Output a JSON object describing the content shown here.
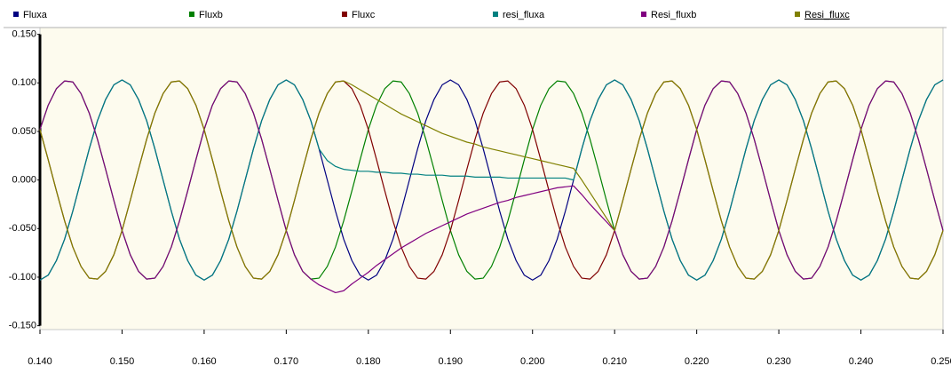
{
  "chart_data": {
    "type": "line",
    "x": [
      0.14,
      0.141,
      0.142,
      0.143,
      0.144,
      0.145,
      0.146,
      0.147,
      0.148,
      0.149,
      0.15,
      0.151,
      0.152,
      0.153,
      0.154,
      0.155,
      0.156,
      0.157,
      0.158,
      0.159,
      0.16,
      0.161,
      0.162,
      0.163,
      0.164,
      0.165,
      0.166,
      0.167,
      0.168,
      0.169,
      0.17,
      0.171,
      0.172,
      0.173,
      0.174,
      0.175,
      0.176,
      0.177,
      0.178,
      0.179,
      0.18,
      0.181,
      0.182,
      0.183,
      0.184,
      0.185,
      0.186,
      0.187,
      0.188,
      0.189,
      0.19,
      0.191,
      0.192,
      0.193,
      0.194,
      0.195,
      0.196,
      0.197,
      0.198,
      0.199,
      0.2,
      0.201,
      0.202,
      0.203,
      0.204,
      0.205,
      0.206,
      0.207,
      0.208,
      0.209,
      0.21,
      0.211,
      0.212,
      0.213,
      0.214,
      0.215,
      0.216,
      0.217,
      0.218,
      0.219,
      0.22,
      0.221,
      0.222,
      0.223,
      0.224,
      0.225,
      0.226,
      0.227,
      0.228,
      0.229,
      0.23,
      0.231,
      0.232,
      0.233,
      0.234,
      0.235,
      0.236,
      0.237,
      0.238,
      0.239,
      0.24,
      0.241,
      0.242,
      0.243,
      0.244,
      0.245,
      0.246,
      0.247,
      0.248,
      0.249,
      0.25
    ],
    "series": [
      {
        "name": "Fluxa",
        "color": "#000080",
        "values": [
          -0.103,
          -0.098,
          -0.083,
          -0.061,
          -0.032,
          0,
          0.032,
          0.061,
          0.083,
          0.098,
          0.103,
          0.098,
          0.083,
          0.061,
          0.032,
          0,
          -0.032,
          -0.061,
          -0.083,
          -0.098,
          -0.103,
          -0.098,
          -0.083,
          -0.061,
          -0.032,
          0,
          0.032,
          0.061,
          0.083,
          0.098,
          0.103,
          0.098,
          0.083,
          0.061,
          0.032,
          0,
          -0.032,
          -0.061,
          -0.083,
          -0.098,
          -0.103,
          -0.098,
          -0.083,
          -0.061,
          -0.032,
          0,
          0.032,
          0.061,
          0.083,
          0.098,
          0.103,
          0.098,
          0.083,
          0.061,
          0.032,
          0,
          -0.032,
          -0.061,
          -0.083,
          -0.098,
          -0.103,
          -0.098,
          -0.083,
          -0.061,
          -0.032,
          0,
          0.032,
          0.061,
          0.083,
          0.098,
          0.103,
          0.098,
          0.083,
          0.061,
          0.032,
          0,
          -0.032,
          -0.061,
          -0.083,
          -0.098,
          -0.103,
          -0.098,
          -0.083,
          -0.061,
          -0.032,
          0,
          0.032,
          0.061,
          0.083,
          0.098,
          0.103,
          0.098,
          0.083,
          0.061,
          0.032,
          0,
          -0.032,
          -0.061,
          -0.083,
          -0.098,
          -0.103,
          -0.098,
          -0.083,
          -0.061,
          -0.032,
          0,
          0.032,
          0.061,
          0.083,
          0.098,
          0.103
        ]
      },
      {
        "name": "Fluxb",
        "color": "#008000",
        "values": [
          0.052,
          0.077,
          0.094,
          0.102,
          0.101,
          0.089,
          0.069,
          0.042,
          0.011,
          -0.021,
          -0.052,
          -0.077,
          -0.094,
          -0.102,
          -0.101,
          -0.089,
          -0.069,
          -0.042,
          -0.011,
          0.021,
          0.052,
          0.077,
          0.094,
          0.102,
          0.101,
          0.089,
          0.069,
          0.042,
          0.011,
          -0.021,
          -0.052,
          -0.077,
          -0.094,
          -0.102,
          -0.101,
          -0.089,
          -0.069,
          -0.042,
          -0.011,
          0.021,
          0.052,
          0.077,
          0.094,
          0.102,
          0.101,
          0.089,
          0.069,
          0.042,
          0.011,
          -0.021,
          -0.052,
          -0.077,
          -0.094,
          -0.102,
          -0.101,
          -0.089,
          -0.069,
          -0.042,
          -0.011,
          0.021,
          0.052,
          0.077,
          0.094,
          0.102,
          0.101,
          0.089,
          0.069,
          0.042,
          0.011,
          -0.021,
          -0.052,
          -0.077,
          -0.094,
          -0.102,
          -0.101,
          -0.089,
          -0.069,
          -0.042,
          -0.011,
          0.021,
          0.052,
          0.077,
          0.094,
          0.102,
          0.101,
          0.089,
          0.069,
          0.042,
          0.011,
          -0.021,
          -0.052,
          -0.077,
          -0.094,
          -0.102,
          -0.101,
          -0.089,
          -0.069,
          -0.042,
          -0.011,
          0.021,
          0.052,
          0.077,
          0.094,
          0.102,
          0.101,
          0.089,
          0.069,
          0.042,
          0.011,
          -0.021,
          -0.052
        ]
      },
      {
        "name": "Fluxc",
        "color": "#800000",
        "values": [
          0.052,
          0.021,
          -0.011,
          -0.042,
          -0.069,
          -0.089,
          -0.101,
          -0.102,
          -0.094,
          -0.077,
          -0.052,
          -0.021,
          0.011,
          0.042,
          0.069,
          0.089,
          0.101,
          0.102,
          0.094,
          0.077,
          0.052,
          0.021,
          -0.011,
          -0.042,
          -0.069,
          -0.089,
          -0.101,
          -0.102,
          -0.094,
          -0.077,
          -0.052,
          -0.021,
          0.011,
          0.042,
          0.069,
          0.089,
          0.101,
          0.102,
          0.094,
          0.077,
          0.052,
          0.021,
          -0.011,
          -0.042,
          -0.069,
          -0.089,
          -0.101,
          -0.102,
          -0.094,
          -0.077,
          -0.052,
          -0.021,
          0.011,
          0.042,
          0.069,
          0.089,
          0.101,
          0.102,
          0.094,
          0.077,
          0.052,
          0.021,
          -0.011,
          -0.042,
          -0.069,
          -0.089,
          -0.101,
          -0.102,
          -0.094,
          -0.077,
          -0.052,
          -0.021,
          0.011,
          0.042,
          0.069,
          0.089,
          0.101,
          0.102,
          0.094,
          0.077,
          0.052,
          0.021,
          -0.011,
          -0.042,
          -0.069,
          -0.089,
          -0.101,
          -0.102,
          -0.094,
          -0.077,
          -0.052,
          -0.021,
          0.011,
          0.042,
          0.069,
          0.089,
          0.101,
          0.102,
          0.094,
          0.077,
          0.052,
          0.021,
          -0.011,
          -0.042,
          -0.069,
          -0.089,
          -0.101,
          -0.102,
          -0.094,
          -0.077,
          -0.052
        ]
      },
      {
        "name": "resi_fluxa",
        "color": "#008080",
        "values": [
          -0.103,
          -0.098,
          -0.083,
          -0.061,
          -0.032,
          0,
          0.032,
          0.061,
          0.083,
          0.098,
          0.103,
          0.098,
          0.083,
          0.061,
          0.032,
          0,
          -0.032,
          -0.061,
          -0.083,
          -0.098,
          -0.103,
          -0.098,
          -0.083,
          -0.061,
          -0.032,
          0,
          0.032,
          0.061,
          0.083,
          0.098,
          0.103,
          0.098,
          0.083,
          0.061,
          0.032,
          0.02,
          0.014,
          0.011,
          0.01,
          0.009,
          0.009,
          0.008,
          0.008,
          0.007,
          0.007,
          0.006,
          0.006,
          0.005,
          0.005,
          0.005,
          0.004,
          0.004,
          0.004,
          0.003,
          0.003,
          0.003,
          0.003,
          0.002,
          0.002,
          0.002,
          0.002,
          0.002,
          0.002,
          0.002,
          0.002,
          0,
          0.032,
          0.061,
          0.083,
          0.098,
          0.103,
          0.098,
          0.083,
          0.061,
          0.032,
          0,
          -0.032,
          -0.061,
          -0.083,
          -0.098,
          -0.103,
          -0.098,
          -0.083,
          -0.061,
          -0.032,
          0,
          0.032,
          0.061,
          0.083,
          0.098,
          0.103,
          0.098,
          0.083,
          0.061,
          0.032,
          0,
          -0.032,
          -0.061,
          -0.083,
          -0.098,
          -0.103,
          -0.098,
          -0.083,
          -0.061,
          -0.032,
          0,
          0.032,
          0.061,
          0.083,
          0.098,
          0.103
        ]
      },
      {
        "name": "Resi_fluxb",
        "color": "#800080",
        "values": [
          0.052,
          0.077,
          0.094,
          0.102,
          0.101,
          0.089,
          0.069,
          0.042,
          0.011,
          -0.021,
          -0.052,
          -0.077,
          -0.094,
          -0.102,
          -0.101,
          -0.089,
          -0.069,
          -0.042,
          -0.011,
          0.021,
          0.052,
          0.077,
          0.094,
          0.102,
          0.101,
          0.089,
          0.069,
          0.042,
          0.011,
          -0.021,
          -0.052,
          -0.077,
          -0.094,
          -0.102,
          -0.108,
          -0.112,
          -0.116,
          -0.114,
          -0.107,
          -0.101,
          -0.095,
          -0.088,
          -0.082,
          -0.076,
          -0.07,
          -0.065,
          -0.06,
          -0.055,
          -0.051,
          -0.047,
          -0.043,
          -0.039,
          -0.035,
          -0.032,
          -0.029,
          -0.026,
          -0.023,
          -0.021,
          -0.018,
          -0.016,
          -0.014,
          -0.012,
          -0.01,
          -0.008,
          -0.007,
          -0.006,
          -0.015,
          -0.025,
          -0.034,
          -0.043,
          -0.052,
          -0.077,
          -0.094,
          -0.102,
          -0.101,
          -0.089,
          -0.069,
          -0.042,
          -0.011,
          0.021,
          0.052,
          0.077,
          0.094,
          0.102,
          0.101,
          0.089,
          0.069,
          0.042,
          0.011,
          -0.021,
          -0.052,
          -0.077,
          -0.094,
          -0.102,
          -0.101,
          -0.089,
          -0.069,
          -0.042,
          -0.011,
          0.021,
          0.052,
          0.077,
          0.094,
          0.102,
          0.101,
          0.089,
          0.069,
          0.042,
          0.011,
          -0.021,
          -0.052
        ]
      },
      {
        "name": "Resi_fluxc",
        "color": "#808000",
        "values": [
          0.052,
          0.021,
          -0.011,
          -0.042,
          -0.069,
          -0.089,
          -0.101,
          -0.102,
          -0.094,
          -0.077,
          -0.052,
          -0.021,
          0.011,
          0.042,
          0.069,
          0.089,
          0.101,
          0.102,
          0.094,
          0.077,
          0.052,
          0.021,
          -0.011,
          -0.042,
          -0.069,
          -0.089,
          -0.101,
          -0.102,
          -0.094,
          -0.077,
          -0.052,
          -0.021,
          0.011,
          0.042,
          0.069,
          0.089,
          0.101,
          0.102,
          0.098,
          0.093,
          0.088,
          0.083,
          0.078,
          0.073,
          0.068,
          0.064,
          0.06,
          0.056,
          0.052,
          0.048,
          0.045,
          0.042,
          0.039,
          0.037,
          0.034,
          0.032,
          0.03,
          0.028,
          0.026,
          0.024,
          0.022,
          0.02,
          0.018,
          0.016,
          0.014,
          0.012,
          0.0,
          -0.013,
          -0.026,
          -0.039,
          -0.052,
          -0.021,
          0.011,
          0.042,
          0.069,
          0.089,
          0.101,
          0.102,
          0.094,
          0.077,
          0.052,
          0.021,
          -0.011,
          -0.042,
          -0.069,
          -0.089,
          -0.101,
          -0.102,
          -0.094,
          -0.077,
          -0.052,
          -0.021,
          0.011,
          0.042,
          0.069,
          0.089,
          0.101,
          0.102,
          0.094,
          0.077,
          0.052,
          0.021,
          -0.011,
          -0.042,
          -0.069,
          -0.089,
          -0.101,
          -0.102,
          -0.094,
          -0.077,
          -0.052
        ]
      }
    ],
    "xlim": [
      0.14,
      0.25
    ],
    "ylim": [
      -0.154,
      0.157
    ],
    "xticks": [
      {
        "value": 0.14,
        "label": "0.140"
      },
      {
        "value": 0.15,
        "label": "0.150"
      },
      {
        "value": 0.16,
        "label": "0.160"
      },
      {
        "value": 0.17,
        "label": "0.170"
      },
      {
        "value": 0.18,
        "label": "0.180"
      },
      {
        "value": 0.19,
        "label": "0.190"
      },
      {
        "value": 0.2,
        "label": "0.200"
      },
      {
        "value": 0.21,
        "label": "0.210"
      },
      {
        "value": 0.22,
        "label": "0.220"
      },
      {
        "value": 0.23,
        "label": "0.230"
      },
      {
        "value": 0.24,
        "label": "0.240"
      },
      {
        "value": 0.25,
        "label": "0.250"
      }
    ],
    "yticks": [
      {
        "value": 0.15,
        "label": "0.150"
      },
      {
        "value": 0.1,
        "label": "0.100"
      },
      {
        "value": 0.05,
        "label": "0.050"
      },
      {
        "value": 0,
        "label": "0.000"
      },
      {
        "value": -0.05,
        "label": "-0.050"
      },
      {
        "value": -0.1,
        "label": "-0.100"
      },
      {
        "value": -0.15,
        "label": "-0.150"
      }
    ],
    "grid": false,
    "legend": "top"
  }
}
